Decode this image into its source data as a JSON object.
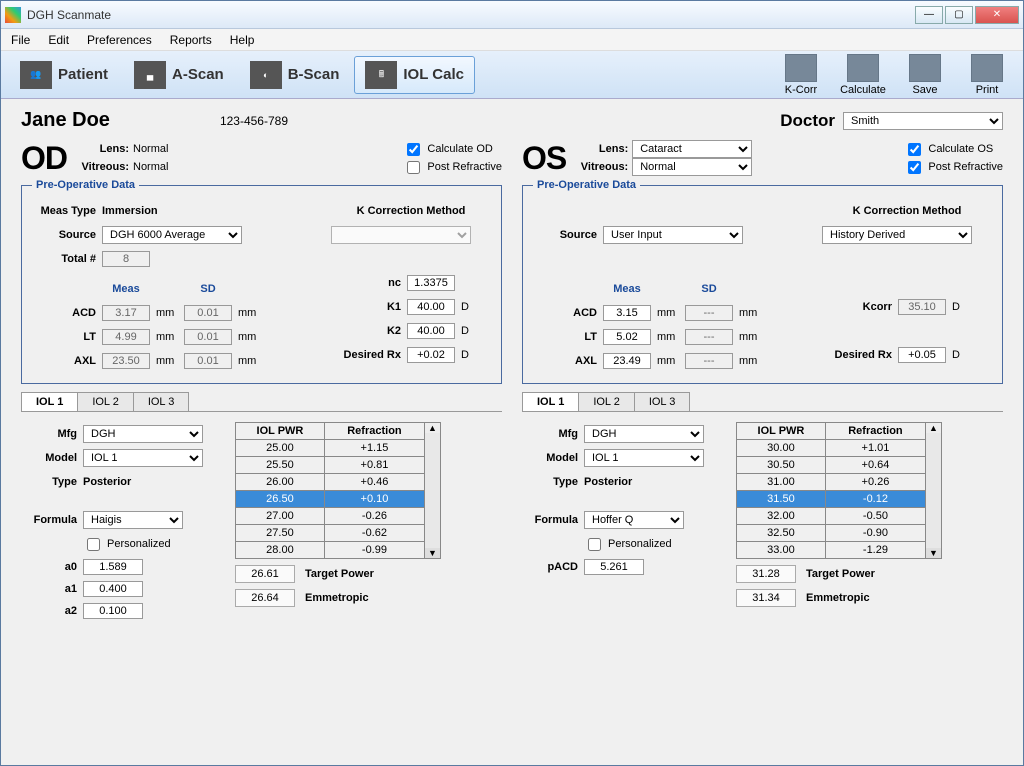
{
  "window": {
    "title": "DGH Scanmate"
  },
  "menu": [
    "File",
    "Edit",
    "Preferences",
    "Reports",
    "Help"
  ],
  "toolbar": {
    "tabs": [
      {
        "id": "patient",
        "label": "Patient"
      },
      {
        "id": "ascan",
        "label": "A-Scan"
      },
      {
        "id": "bscan",
        "label": "B-Scan"
      },
      {
        "id": "iolcalc",
        "label": "IOL Calc"
      }
    ],
    "active": "iolcalc",
    "actions": [
      {
        "id": "kcorr",
        "label": "K-Corr"
      },
      {
        "id": "calculate",
        "label": "Calculate"
      },
      {
        "id": "save",
        "label": "Save"
      },
      {
        "id": "print",
        "label": "Print"
      }
    ]
  },
  "patient": {
    "name": "Jane Doe",
    "id": "123-456-789"
  },
  "doctor": {
    "label": "Doctor",
    "value": "Smith"
  },
  "od": {
    "name": "OD",
    "lens_label": "Lens:",
    "lens": "Normal",
    "vitreous_label": "Vitreous:",
    "vitreous": "Normal",
    "calc_label": "Calculate OD",
    "calc": true,
    "post_label": "Post Refractive",
    "post": false,
    "preop_legend": "Pre-Operative Data",
    "meas_type_label": "Meas Type",
    "meas_type": "Immersion",
    "source_label": "Source",
    "source": "DGH 6000 Average",
    "total_label": "Total #",
    "total": "8",
    "kcorr_label": "K Correction Method",
    "kcorr_method": "",
    "meas_hdr": "Meas",
    "sd_hdr": "SD",
    "nc_label": "nc",
    "nc": "1.3375",
    "acd_label": "ACD",
    "acd": "3.17",
    "acd_sd": "0.01",
    "lt_label": "LT",
    "lt": "4.99",
    "lt_sd": "0.01",
    "axl_label": "AXL",
    "axl": "23.50",
    "axl_sd": "0.01",
    "k1_label": "K1",
    "k1": "40.00",
    "k2_label": "K2",
    "k2": "40.00",
    "drx_label": "Desired Rx",
    "drx": "+0.02",
    "unit_mm": "mm",
    "unit_d": "D",
    "iol_tabs": [
      "IOL 1",
      "IOL 2",
      "IOL 3"
    ],
    "mfg_label": "Mfg",
    "mfg": "DGH",
    "model_label": "Model",
    "model": "IOL 1",
    "type_label": "Type",
    "type": "Posterior",
    "formula_label": "Formula",
    "formula": "Haigis",
    "personalized_label": "Personalized",
    "personalized": false,
    "a0_label": "a0",
    "a0": "1.589",
    "a1_label": "a1",
    "a1": "0.400",
    "a2_label": "a2",
    "a2": "0.100",
    "pwr_hdr": "IOL PWR",
    "ref_hdr": "Refraction",
    "rows": [
      {
        "p": "25.00",
        "r": "+1.15"
      },
      {
        "p": "25.50",
        "r": "+0.81"
      },
      {
        "p": "26.00",
        "r": "+0.46"
      },
      {
        "p": "26.50",
        "r": "+0.10",
        "sel": true
      },
      {
        "p": "27.00",
        "r": "-0.26"
      },
      {
        "p": "27.50",
        "r": "-0.62"
      },
      {
        "p": "28.00",
        "r": "-0.99"
      }
    ],
    "target_power": "26.61",
    "target_power_label": "Target Power",
    "emmetropic": "26.64",
    "emmetropic_label": "Emmetropic"
  },
  "os": {
    "name": "OS",
    "lens_label": "Lens:",
    "lens": "Cataract",
    "vitreous_label": "Vitreous:",
    "vitreous": "Normal",
    "calc_label": "Calculate OS",
    "calc": true,
    "post_label": "Post Refractive",
    "post": true,
    "preop_legend": "Pre-Operative Data",
    "source_label": "Source",
    "source": "User Input",
    "kcorr_label": "K Correction Method",
    "kcorr_method": "History Derived",
    "meas_hdr": "Meas",
    "sd_hdr": "SD",
    "acd_label": "ACD",
    "acd": "3.15",
    "acd_sd": "---",
    "lt_label": "LT",
    "lt": "5.02",
    "lt_sd": "---",
    "axl_label": "AXL",
    "axl": "23.49",
    "axl_sd": "---",
    "kcorr_val_label": "Kcorr",
    "kcorr_val": "35.10",
    "drx_label": "Desired Rx",
    "drx": "+0.05",
    "unit_mm": "mm",
    "unit_d": "D",
    "iol_tabs": [
      "IOL 1",
      "IOL 2",
      "IOL 3"
    ],
    "mfg_label": "Mfg",
    "mfg": "DGH",
    "model_label": "Model",
    "model": "IOL 1",
    "type_label": "Type",
    "type": "Posterior",
    "formula_label": "Formula",
    "formula": "Hoffer Q",
    "personalized_label": "Personalized",
    "personalized": false,
    "pacd_label": "pACD",
    "pacd": "5.261",
    "pwr_hdr": "IOL PWR",
    "ref_hdr": "Refraction",
    "rows": [
      {
        "p": "30.00",
        "r": "+1.01"
      },
      {
        "p": "30.50",
        "r": "+0.64"
      },
      {
        "p": "31.00",
        "r": "+0.26"
      },
      {
        "p": "31.50",
        "r": "-0.12",
        "sel": true
      },
      {
        "p": "32.00",
        "r": "-0.50"
      },
      {
        "p": "32.50",
        "r": "-0.90"
      },
      {
        "p": "33.00",
        "r": "-1.29"
      }
    ],
    "target_power": "31.28",
    "target_power_label": "Target Power",
    "emmetropic": "31.34",
    "emmetropic_label": "Emmetropic"
  }
}
